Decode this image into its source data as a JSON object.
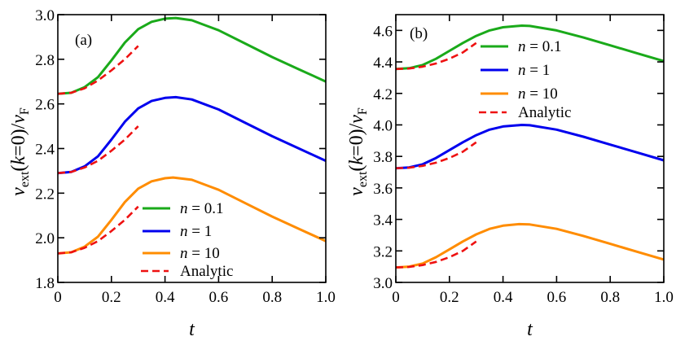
{
  "chart_data": [
    {
      "type": "line",
      "panel_label": "(a)",
      "xlabel": "t",
      "ylabel_main": "v",
      "ylabel_sub": "ext",
      "ylabel_mid": "(",
      "ylabel_k": "k",
      "ylabel_rest": "=0)/",
      "ylabel_v2": "v",
      "ylabel_sub2": "F",
      "xlim": [
        0,
        1.0
      ],
      "ylim": [
        1.8,
        3.0
      ],
      "xticks": [
        "0",
        "0.2",
        "0.4",
        "0.6",
        "0.8",
        "1.0"
      ],
      "yticks": [
        "1.8",
        "2.0",
        "2.2",
        "2.4",
        "2.6",
        "2.8",
        "3.0"
      ],
      "grid": false,
      "legend_placement": "bottom-center",
      "series": [
        {
          "name": "n = 0.1",
          "name_var": "n",
          "name_val": " = 0.1",
          "color": "#1aaa1a",
          "dashed": false,
          "x": [
            0,
            0.05,
            0.1,
            0.15,
            0.2,
            0.25,
            0.3,
            0.35,
            0.4,
            0.44,
            0.5,
            0.6,
            0.7,
            0.8,
            0.9,
            1.0
          ],
          "y": [
            2.645,
            2.65,
            2.675,
            2.72,
            2.795,
            2.875,
            2.935,
            2.968,
            2.982,
            2.985,
            2.975,
            2.93,
            2.87,
            2.81,
            2.755,
            2.7
          ]
        },
        {
          "name": "n = 1",
          "name_var": "n",
          "name_val": " = 1",
          "color": "#0000ee",
          "dashed": false,
          "x": [
            0,
            0.05,
            0.1,
            0.15,
            0.2,
            0.25,
            0.3,
            0.35,
            0.4,
            0.44,
            0.5,
            0.6,
            0.7,
            0.8,
            0.9,
            1.0
          ],
          "y": [
            2.29,
            2.295,
            2.32,
            2.365,
            2.44,
            2.52,
            2.58,
            2.613,
            2.627,
            2.63,
            2.62,
            2.575,
            2.515,
            2.455,
            2.4,
            2.345
          ]
        },
        {
          "name": "n = 10",
          "name_var": "n",
          "name_val": " = 10",
          "color": "#ff8c00",
          "dashed": false,
          "x": [
            0,
            0.05,
            0.1,
            0.15,
            0.2,
            0.25,
            0.3,
            0.35,
            0.4,
            0.43,
            0.5,
            0.6,
            0.7,
            0.8,
            0.9,
            1.0
          ],
          "y": [
            1.93,
            1.935,
            1.96,
            2.005,
            2.08,
            2.16,
            2.22,
            2.253,
            2.267,
            2.27,
            2.26,
            2.215,
            2.155,
            2.095,
            2.04,
            1.985
          ]
        },
        {
          "name": "Analytic",
          "name_var": "",
          "name_val": "Analytic",
          "color": "#ee1111",
          "dashed": true,
          "multi": [
            {
              "x": [
                0,
                0.05,
                0.1,
                0.15,
                0.2,
                0.25,
                0.3
              ],
              "y": [
                2.645,
                2.65,
                2.67,
                2.705,
                2.75,
                2.8,
                2.86
              ]
            },
            {
              "x": [
                0,
                0.05,
                0.1,
                0.15,
                0.2,
                0.25,
                0.3
              ],
              "y": [
                2.29,
                2.295,
                2.315,
                2.345,
                2.39,
                2.44,
                2.5
              ]
            },
            {
              "x": [
                0,
                0.05,
                0.1,
                0.15,
                0.2,
                0.25,
                0.3
              ],
              "y": [
                1.93,
                1.935,
                1.955,
                1.985,
                2.03,
                2.08,
                2.14
              ]
            }
          ]
        }
      ]
    },
    {
      "type": "line",
      "panel_label": "(b)",
      "xlabel": "t",
      "ylabel_main": "v",
      "ylabel_sub": "ext",
      "ylabel_mid": "(",
      "ylabel_k": "k",
      "ylabel_rest": "=0)/",
      "ylabel_v2": "v",
      "ylabel_sub2": "F",
      "xlim": [
        0,
        1.0
      ],
      "ylim": [
        3.0,
        4.7
      ],
      "xticks": [
        "0",
        "0.2",
        "0.4",
        "0.6",
        "0.8",
        "1.0"
      ],
      "yticks": [
        "3.0",
        "3.2",
        "3.4",
        "3.6",
        "3.8",
        "4.0",
        "4.2",
        "4.4",
        "4.6"
      ],
      "grid": false,
      "legend_placement": "top-center",
      "series": [
        {
          "name": "n = 0.1",
          "name_var": "n",
          "name_val": " = 0.1",
          "color": "#1aaa1a",
          "dashed": false,
          "x": [
            0,
            0.05,
            0.1,
            0.15,
            0.2,
            0.25,
            0.3,
            0.35,
            0.4,
            0.47,
            0.5,
            0.6,
            0.7,
            0.8,
            0.9,
            1.0
          ],
          "y": [
            4.355,
            4.36,
            4.38,
            4.42,
            4.47,
            4.52,
            4.565,
            4.6,
            4.62,
            4.63,
            4.628,
            4.6,
            4.555,
            4.505,
            4.455,
            4.405
          ]
        },
        {
          "name": "n = 1",
          "name_var": "n",
          "name_val": " = 1",
          "color": "#0000ee",
          "dashed": false,
          "x": [
            0,
            0.05,
            0.1,
            0.15,
            0.2,
            0.25,
            0.3,
            0.35,
            0.4,
            0.47,
            0.5,
            0.6,
            0.7,
            0.8,
            0.9,
            1.0
          ],
          "y": [
            3.725,
            3.73,
            3.75,
            3.79,
            3.84,
            3.89,
            3.935,
            3.97,
            3.99,
            4.0,
            3.998,
            3.97,
            3.925,
            3.875,
            3.825,
            3.775
          ]
        },
        {
          "name": "n = 10",
          "name_var": "n",
          "name_val": " = 10",
          "color": "#ff8c00",
          "dashed": false,
          "x": [
            0,
            0.05,
            0.1,
            0.15,
            0.2,
            0.25,
            0.3,
            0.35,
            0.4,
            0.46,
            0.5,
            0.6,
            0.7,
            0.8,
            0.9,
            1.0
          ],
          "y": [
            3.095,
            3.1,
            3.12,
            3.16,
            3.21,
            3.26,
            3.305,
            3.34,
            3.36,
            3.37,
            3.368,
            3.34,
            3.295,
            3.245,
            3.195,
            3.145
          ]
        },
        {
          "name": "Analytic",
          "name_var": "",
          "name_val": "Analytic",
          "color": "#ee1111",
          "dashed": true,
          "multi": [
            {
              "x": [
                0,
                0.05,
                0.1,
                0.15,
                0.2,
                0.25,
                0.3
              ],
              "y": [
                4.355,
                4.358,
                4.37,
                4.39,
                4.42,
                4.46,
                4.52
              ]
            },
            {
              "x": [
                0,
                0.05,
                0.1,
                0.15,
                0.2,
                0.25,
                0.3
              ],
              "y": [
                3.725,
                3.728,
                3.74,
                3.76,
                3.79,
                3.83,
                3.89
              ]
            },
            {
              "x": [
                0,
                0.05,
                0.1,
                0.15,
                0.2,
                0.25,
                0.3
              ],
              "y": [
                3.095,
                3.098,
                3.11,
                3.13,
                3.16,
                3.2,
                3.26
              ]
            }
          ]
        }
      ]
    }
  ]
}
